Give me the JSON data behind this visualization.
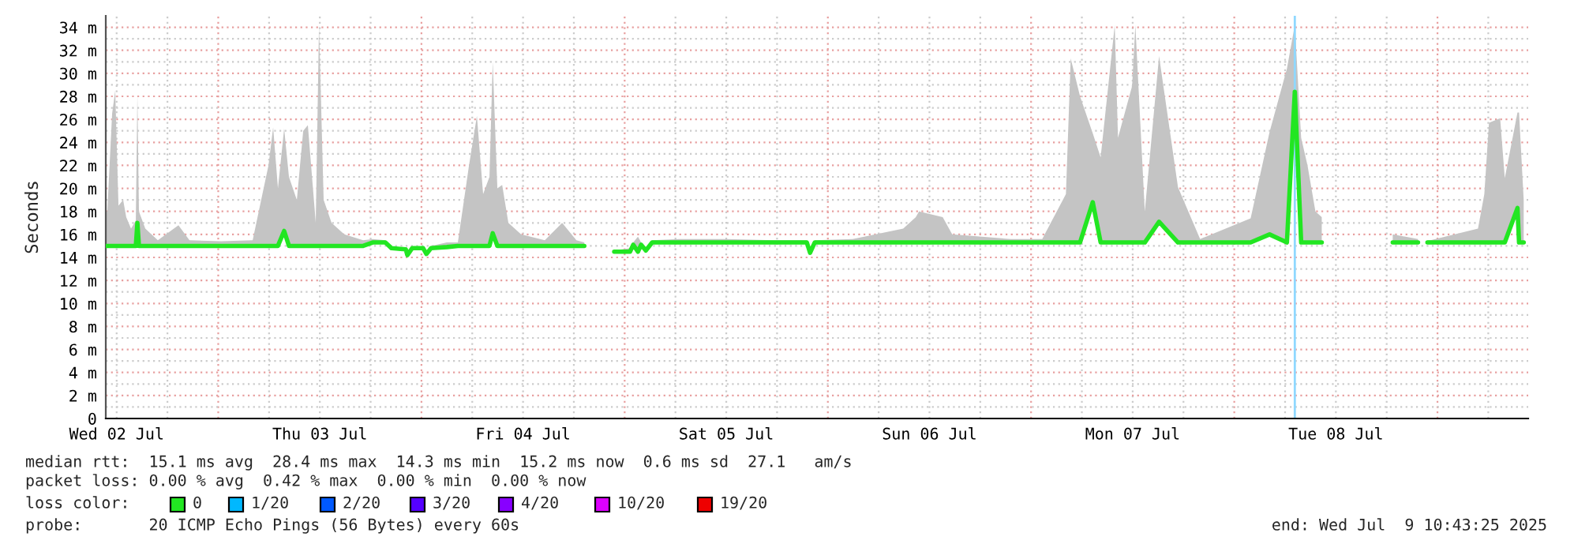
{
  "chart_data": {
    "type": "line",
    "ylabel": "Seconds",
    "x": [
      "2025-07-02T10:43",
      "2025-07-02T10:54",
      "2025-07-02T11:28",
      "2025-07-02T11:50",
      "2025-07-02T12:13",
      "2025-07-02T12:46",
      "2025-07-02T13:08",
      "2025-07-02T13:42",
      "2025-07-02T14:16",
      "2025-07-02T14:27",
      "2025-07-02T14:38",
      "2025-07-02T15:23",
      "2025-07-02T16:52",
      "2025-07-02T19:18",
      "2025-07-02T20:36",
      "2025-07-03T00:20",
      "2025-07-03T04:04",
      "2025-07-03T05:56",
      "2025-07-03T06:29",
      "2025-07-03T07:03",
      "2025-07-03T07:47",
      "2025-07-03T08:21",
      "2025-07-03T09:17",
      "2025-07-03T10:02",
      "2025-07-03T10:35",
      "2025-07-03T11:31",
      "2025-07-03T11:54",
      "2025-07-03T12:27",
      "2025-07-03T13:23",
      "2025-07-03T14:53",
      "2025-07-03T17:07",
      "2025-07-03T18:14",
      "2025-07-03T19:44",
      "2025-07-03T20:28",
      "2025-07-03T22:09",
      "2025-07-03T22:20",
      "2025-07-03T22:54",
      "2025-07-04T00:12",
      "2025-07-04T00:35",
      "2025-07-04T01:08",
      "2025-07-04T03:00",
      "2025-07-04T04:18",
      "2025-07-04T05:37",
      "2025-07-04T06:33",
      "2025-07-04T07:17",
      "2025-07-04T08:02",
      "2025-07-04T08:25",
      "2025-07-04T08:58",
      "2025-07-04T09:32",
      "2025-07-04T10:16",
      "2025-07-04T11:46",
      "2025-07-04T14:34",
      "2025-07-04T16:37",
      "2025-07-04T18:18",
      "2025-07-04T19:14",
      "2025-07-04T19:25",
      "2025-07-04T22:46",
      "2025-07-05T00:38",
      "2025-07-05T01:01",
      "2025-07-05T01:34",
      "2025-07-05T01:57",
      "2025-07-05T02:30",
      "2025-07-05T03:15",
      "2025-07-05T06:25",
      "2025-07-05T12:01",
      "2025-07-05T17:37",
      "2025-07-05T21:31",
      "2025-07-05T21:54",
      "2025-07-05T22:27",
      "2025-07-06T02:56",
      "2025-07-06T08:54",
      "2025-07-06T10:23",
      "2025-07-06T10:46",
      "2025-07-06T13:34",
      "2025-07-06T14:41",
      "2025-07-06T21:35",
      "2025-07-07T01:19",
      "2025-07-07T04:07",
      "2025-07-07T04:41",
      "2025-07-07T05:47",
      "2025-07-07T07:17",
      "2025-07-07T08:13",
      "2025-07-07T09:53",
      "2025-07-07T10:16",
      "2025-07-07T11:56",
      "2025-07-07T12:19",
      "2025-07-07T13:26",
      "2025-07-07T15:07",
      "2025-07-07T17:21",
      "2025-07-07T19:58",
      "2025-07-08T01:56",
      "2025-07-08T04:10",
      "2025-07-08T06:13",
      "2025-07-08T07:09",
      "2025-07-08T07:54",
      "2025-07-08T08:39",
      "2025-07-08T09:35",
      "2025-07-08T10:20",
      "2025-07-08T10:31",
      "2025-07-08T18:43",
      "2025-07-08T21:42",
      "2025-07-08T21:53",
      "2025-07-08T22:49",
      "2025-07-08T23:11",
      "2025-07-08T23:45",
      "2025-07-09T04:47",
      "2025-07-09T05:32",
      "2025-07-09T06:05",
      "2025-07-09T07:24",
      "2025-07-09T07:57",
      "2025-07-09T09:27",
      "2025-07-09T09:38",
      "2025-07-09T10:11"
    ],
    "series": [
      {
        "color": "#22e622",
        "values": [
          15.0,
          15.0,
          15.0,
          15.0,
          15.0,
          15.0,
          15.0,
          15.0,
          15.0,
          17.0,
          15.0,
          15.0,
          15.0,
          15.0,
          15.0,
          15.0,
          15.0,
          15.0,
          15.0,
          15.0,
          16.3,
          15.0,
          15.0,
          15.0,
          15.0,
          15.0,
          15.0,
          15.0,
          15.0,
          15.0,
          15.0,
          15.3,
          15.3,
          14.8,
          14.7,
          14.2,
          14.8,
          14.8,
          14.3,
          14.8,
          14.9,
          15.0,
          15.0,
          15.0,
          15.0,
          15.0,
          16.1,
          15.0,
          15.0,
          15.0,
          15.0,
          15.0,
          15.0,
          15.0,
          15.0,
          null,
          14.5,
          14.5,
          15.1,
          14.5,
          15.1,
          14.6,
          15.3,
          15.3,
          15.3,
          15.3,
          15.3,
          14.4,
          15.3,
          15.3,
          15.3,
          15.3,
          15.3,
          15.3,
          15.3,
          15.3,
          15.3,
          15.3,
          15.3,
          15.3,
          18.8,
          15.3,
          15.3,
          15.3,
          15.3,
          15.3,
          15.3,
          17.1,
          15.3,
          15.3,
          15.3,
          16.0,
          15.3,
          28.4,
          15.3,
          15.3,
          15.3,
          15.3,
          null,
          15.3,
          15.3,
          null,
          15.3,
          15.3,
          15.3,
          15.3,
          15.3,
          15.3,
          15.3,
          15.3,
          18.3,
          15.3,
          15.3
        ],
        "lower": [
          15.0,
          15.0,
          15.0,
          15.0,
          15.0,
          15.0,
          15.0,
          15.0,
          15.0,
          17.0,
          15.0,
          15.0,
          15.0,
          15.0,
          15.0,
          15.0,
          15.0,
          15.0,
          15.0,
          15.0,
          16.3,
          15.0,
          15.0,
          15.0,
          15.0,
          15.0,
          15.0,
          15.0,
          15.0,
          15.0,
          15.0,
          15.3,
          15.3,
          14.8,
          14.7,
          14.2,
          14.8,
          14.8,
          14.3,
          14.8,
          14.9,
          15.0,
          15.0,
          15.0,
          15.0,
          15.0,
          16.1,
          15.0,
          15.0,
          15.0,
          15.0,
          15.0,
          15.0,
          15.0,
          15.0,
          null,
          14.5,
          14.5,
          15.1,
          14.5,
          15.1,
          14.6,
          15.3,
          15.3,
          15.3,
          15.3,
          15.3,
          14.4,
          15.3,
          15.3,
          15.3,
          15.3,
          15.3,
          15.3,
          15.3,
          15.3,
          15.3,
          15.3,
          15.3,
          15.3,
          18.8,
          15.3,
          15.3,
          15.3,
          15.3,
          15.3,
          15.3,
          17.1,
          15.3,
          15.3,
          15.3,
          16.0,
          15.3,
          28.4,
          15.3,
          15.3,
          15.3,
          15.3,
          null,
          15.3,
          15.3,
          null,
          15.3,
          15.3,
          15.3,
          15.3,
          15.3,
          15.3,
          15.3,
          15.3,
          18.3,
          15.3,
          15.3
        ],
        "upper": [
          18.0,
          18.0,
          26.5,
          28.5,
          18.5,
          19.0,
          17.5,
          16.5,
          17.2,
          28.2,
          18.0,
          16.5,
          15.5,
          16.8,
          15.5,
          15.4,
          15.5,
          22.0,
          25.3,
          20.0,
          25.2,
          21.0,
          19.0,
          25.0,
          25.5,
          17.0,
          34.2,
          19.0,
          17.0,
          16.0,
          15.5,
          15.6,
          15.5,
          14.9,
          14.8,
          14.3,
          14.9,
          14.9,
          14.4,
          15.0,
          15.3,
          15.3,
          22.0,
          26.3,
          19.5,
          21.0,
          31.0,
          20.0,
          20.3,
          17.0,
          16.0,
          15.5,
          17.0,
          15.5,
          15.3,
          null,
          14.6,
          14.8,
          15.3,
          15.8,
          15.3,
          14.8,
          15.5,
          15.6,
          15.6,
          15.5,
          15.5,
          14.5,
          15.5,
          15.6,
          16.5,
          17.5,
          18.0,
          17.5,
          16.0,
          15.6,
          15.6,
          19.5,
          31.3,
          28.0,
          24.8,
          22.7,
          34.2,
          24.4,
          28.9,
          34.2,
          18.0,
          31.5,
          20.1,
          15.6,
          17.4,
          24.9,
          30.4,
          34.2,
          24.4,
          22.0,
          18.0,
          17.5,
          null,
          16.0,
          15.6,
          null,
          15.5,
          15.5,
          15.6,
          16.5,
          19.5,
          25.7,
          26.1,
          20.9,
          26.6,
          26.6,
          19.0
        ]
      }
    ],
    "xlim": [
      "2025-07-02T10:43",
      "2025-07-09T10:43"
    ],
    "xticks": [
      {
        "value": "2025-07-02T12:00",
        "label": "Wed 02 Jul"
      },
      {
        "value": "2025-07-02T18:00",
        "label": null
      },
      {
        "value": "2025-07-03T00:00",
        "label": null
      },
      {
        "value": "2025-07-03T06:00",
        "label": null
      },
      {
        "value": "2025-07-03T12:00",
        "label": "Thu 03 Jul"
      },
      {
        "value": "2025-07-03T18:00",
        "label": null
      },
      {
        "value": "2025-07-04T00:00",
        "label": null
      },
      {
        "value": "2025-07-04T06:00",
        "label": null
      },
      {
        "value": "2025-07-04T12:00",
        "label": "Fri 04 Jul"
      },
      {
        "value": "2025-07-04T18:00",
        "label": null
      },
      {
        "value": "2025-07-05T00:00",
        "label": null
      },
      {
        "value": "2025-07-05T06:00",
        "label": null
      },
      {
        "value": "2025-07-05T12:00",
        "label": "Sat 05 Jul"
      },
      {
        "value": "2025-07-05T18:00",
        "label": null
      },
      {
        "value": "2025-07-06T00:00",
        "label": null
      },
      {
        "value": "2025-07-06T06:00",
        "label": null
      },
      {
        "value": "2025-07-06T12:00",
        "label": "Sun 06 Jul"
      },
      {
        "value": "2025-07-06T18:00",
        "label": null
      },
      {
        "value": "2025-07-07T00:00",
        "label": null
      },
      {
        "value": "2025-07-07T06:00",
        "label": null
      },
      {
        "value": "2025-07-07T12:00",
        "label": "Mon 07 Jul"
      },
      {
        "value": "2025-07-07T18:00",
        "label": null
      },
      {
        "value": "2025-07-08T00:00",
        "label": null
      },
      {
        "value": "2025-07-08T06:00",
        "label": null
      },
      {
        "value": "2025-07-08T12:00",
        "label": "Tue 08 Jul"
      },
      {
        "value": "2025-07-08T18:00",
        "label": null
      },
      {
        "value": "2025-07-09T00:00",
        "label": null
      },
      {
        "value": "2025-07-09T06:00",
        "label": null
      }
    ],
    "ylim": [
      0,
      35
    ],
    "yticks": [
      0,
      {
        "value": 1,
        "label": null
      },
      {
        "value": 2,
        "label": "2 m"
      },
      {
        "value": 3,
        "label": null
      },
      {
        "value": 4,
        "label": "4 m"
      },
      {
        "value": 5,
        "label": null
      },
      {
        "value": 6,
        "label": "6 m"
      },
      {
        "value": 7,
        "label": null
      },
      {
        "value": 8,
        "label": "8 m"
      },
      {
        "value": 9,
        "label": null
      },
      {
        "value": 10,
        "label": "10 m"
      },
      {
        "value": 11,
        "label": null
      },
      {
        "value": 12,
        "label": "12 m"
      },
      {
        "value": 13,
        "label": null
      },
      {
        "value": 14,
        "label": "14 m"
      },
      {
        "value": 15,
        "label": null
      },
      {
        "value": 16,
        "label": "16 m"
      },
      {
        "value": 17,
        "label": null
      },
      {
        "value": 18,
        "label": "18 m"
      },
      {
        "value": 19,
        "label": null
      },
      {
        "value": 20,
        "label": "20 m"
      },
      {
        "value": 21,
        "label": null
      },
      {
        "value": 22,
        "label": "22 m"
      },
      {
        "value": 23,
        "label": null
      },
      {
        "value": 24,
        "label": "24 m"
      },
      {
        "value": 25,
        "label": null
      },
      {
        "value": 26,
        "label": "26 m"
      },
      {
        "value": 27,
        "label": null
      },
      {
        "value": 28,
        "label": "28 m"
      },
      {
        "value": 29,
        "label": null
      },
      {
        "value": 30,
        "label": "30 m"
      },
      {
        "value": 31,
        "label": null
      },
      {
        "value": 32,
        "label": "32 m"
      },
      {
        "value": 33,
        "label": null
      },
      {
        "value": 34,
        "label": "34 m"
      }
    ],
    "grid": true,
    "ref_lines": [
      {
        "axis": "x",
        "value": "2025-07-08T07:09",
        "color": "#8fd8ff"
      }
    ],
    "annotations": [
      "median rtt:  15.1 ms avg  28.4 ms max  14.3 ms min  15.2 ms now  0.6 ms sd  27.1   am/s",
      "packet loss: 0.00 % avg  0.42 % max  0.00 % min  0.00 % now",
      "loss color:",
      "0",
      "1/20",
      "2/20",
      "3/20",
      "4/20",
      "10/20",
      "19/20",
      "probe:       20 ICMP Echo Pings (56 Bytes) every 60s",
      "end: Wed Jul  9 10:43:25 2025"
    ]
  }
}
